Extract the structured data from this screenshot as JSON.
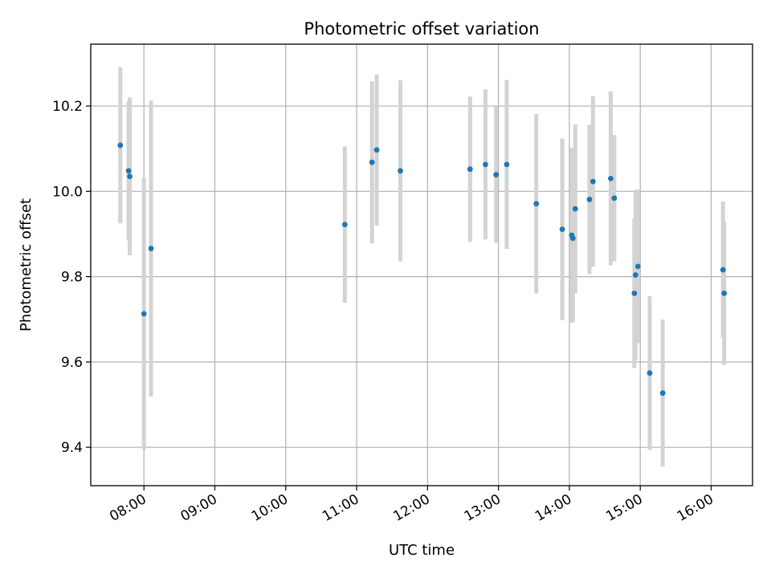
{
  "chart_data": {
    "type": "scatter",
    "title": "Photometric offset variation",
    "xlabel": "UTC time",
    "ylabel": "Photometric offset",
    "grid": true,
    "xlim": [
      "07:15",
      "16:35"
    ],
    "ylim": [
      9.31,
      10.345
    ],
    "x_tick_labels": [
      "08:00",
      "09:00",
      "10:00",
      "11:00",
      "12:00",
      "13:00",
      "14:00",
      "15:00",
      "16:00"
    ],
    "y_tick_labels": [
      "9.4",
      "9.6",
      "9.8",
      "10.0",
      "10.2"
    ],
    "y_ticks": [
      9.4,
      9.6,
      9.8,
      10.0,
      10.2
    ],
    "marker_color": "#1f77b4",
    "errorbar_color": "#d3d3d3",
    "points": [
      {
        "x": "07:40",
        "y": 10.108,
        "err": 0.183
      },
      {
        "x": "07:47",
        "y": 10.048,
        "err": 0.163
      },
      {
        "x": "07:48",
        "y": 10.035,
        "err": 0.185
      },
      {
        "x": "08:00",
        "y": 9.713,
        "err": 0.318
      },
      {
        "x": "08:06",
        "y": 9.866,
        "err": 0.347
      },
      {
        "x": "10:50",
        "y": 9.922,
        "err": 0.183
      },
      {
        "x": "11:13",
        "y": 10.068,
        "err": 0.19
      },
      {
        "x": "11:17",
        "y": 10.097,
        "err": 0.177
      },
      {
        "x": "11:37",
        "y": 10.048,
        "err": 0.212
      },
      {
        "x": "12:36",
        "y": 10.052,
        "err": 0.17
      },
      {
        "x": "12:49",
        "y": 10.063,
        "err": 0.176
      },
      {
        "x": "12:58",
        "y": 10.039,
        "err": 0.16
      },
      {
        "x": "13:07",
        "y": 10.063,
        "err": 0.198
      },
      {
        "x": "13:32",
        "y": 9.971,
        "err": 0.21
      },
      {
        "x": "13:54",
        "y": 9.911,
        "err": 0.213
      },
      {
        "x": "14:02",
        "y": 9.897,
        "err": 0.205
      },
      {
        "x": "14:03",
        "y": 9.89,
        "err": 0.195
      },
      {
        "x": "14:05",
        "y": 9.959,
        "err": 0.198
      },
      {
        "x": "14:17",
        "y": 9.981,
        "err": 0.175
      },
      {
        "x": "14:20",
        "y": 10.023,
        "err": 0.2
      },
      {
        "x": "14:35",
        "y": 10.03,
        "err": 0.204
      },
      {
        "x": "14:38",
        "y": 9.984,
        "err": 0.148
      },
      {
        "x": "14:55",
        "y": 9.761,
        "err": 0.175
      },
      {
        "x": "14:56",
        "y": 9.804,
        "err": 0.2
      },
      {
        "x": "14:58",
        "y": 9.824,
        "err": 0.18
      },
      {
        "x": "15:08",
        "y": 9.574,
        "err": 0.18
      },
      {
        "x": "15:19",
        "y": 9.527,
        "err": 0.172
      },
      {
        "x": "16:10",
        "y": 9.816,
        "err": 0.16
      },
      {
        "x": "16:11",
        "y": 9.761,
        "err": 0.168
      }
    ]
  }
}
